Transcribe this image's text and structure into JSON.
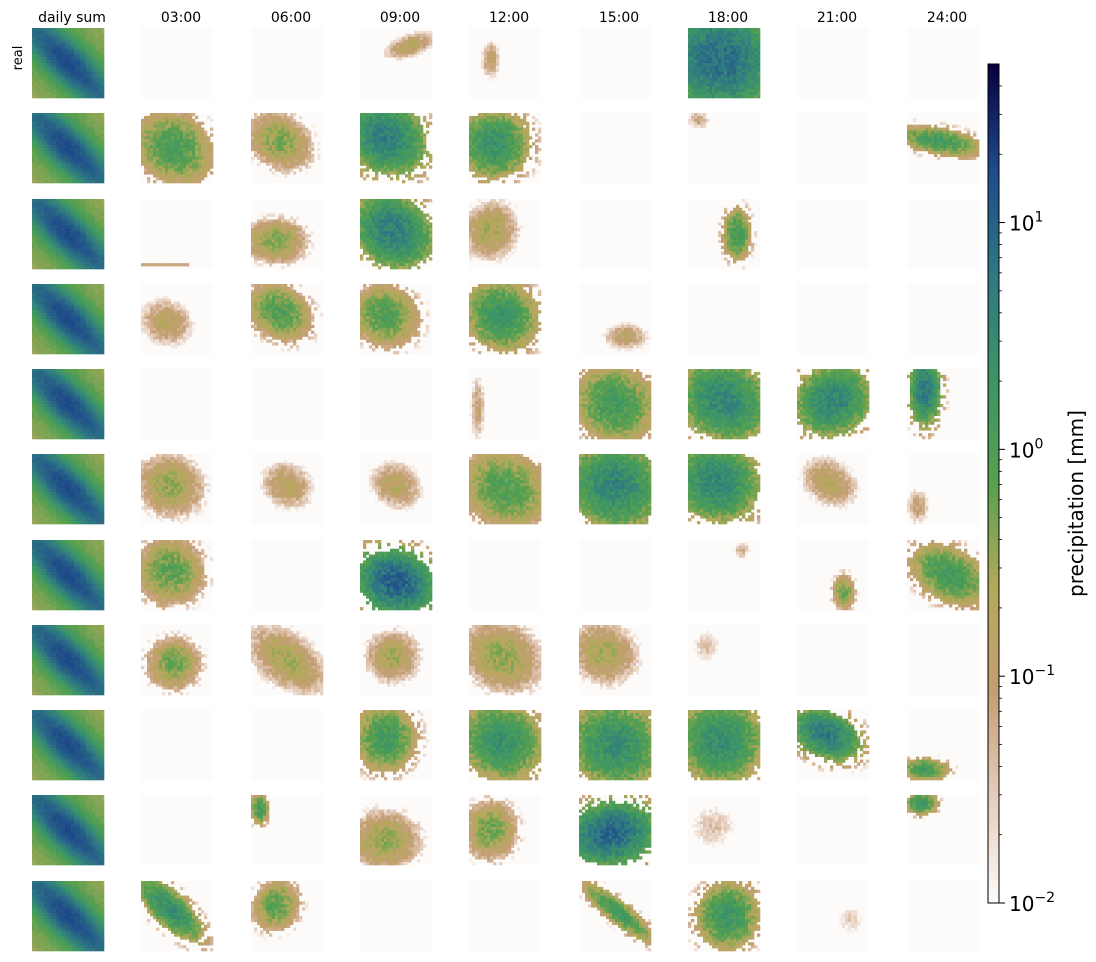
{
  "chart_data": {
    "type": "heatmap",
    "title": "",
    "column_labels": [
      "daily sum",
      "03:00",
      "06:00",
      "09:00",
      "12:00",
      "15:00",
      "18:00",
      "21:00",
      "24:00"
    ],
    "row_labels": [
      "real",
      "",
      "",
      "",
      "",
      "",
      "",
      "",
      "",
      "",
      ""
    ],
    "grid": {
      "rows": 11,
      "cols": 9
    },
    "colorbar": {
      "label": "precipitation [mm]",
      "scale": "log",
      "range": [
        0.01,
        50
      ],
      "ticks": [
        {
          "value": 0.01,
          "base": "10",
          "exp": "−2"
        },
        {
          "value": 0.1,
          "base": "10",
          "exp": "−1"
        },
        {
          "value": 1,
          "base": "10",
          "exp": "0"
        },
        {
          "value": 10,
          "base": "10",
          "exp": "1"
        }
      ],
      "colormap": "gist_earth_r",
      "colors": [
        "#fdfbf9",
        "#e5cdbd",
        "#c49e74",
        "#b3a95a",
        "#58a04f",
        "#3c9566",
        "#2e7883",
        "#1e4a8a",
        "#07003f"
      ]
    },
    "panels": [
      {
        "row": 0,
        "col": 0,
        "type": "sum"
      },
      {
        "row": 0,
        "col": 1,
        "type": "empty"
      },
      {
        "row": 0,
        "col": 2,
        "type": "empty"
      },
      {
        "row": 0,
        "col": 3,
        "type": "blob",
        "cx": 0.7,
        "cy": 0.25,
        "rx": 0.35,
        "ry": 0.15,
        "max": 0.2,
        "angle": -20
      },
      {
        "row": 0,
        "col": 4,
        "type": "blob",
        "cx": 0.3,
        "cy": 0.45,
        "rx": 0.12,
        "ry": 0.25,
        "max": 0.15,
        "angle": 0
      },
      {
        "row": 0,
        "col": 5,
        "type": "empty"
      },
      {
        "row": 0,
        "col": 6,
        "type": "blob",
        "cx": 0.45,
        "cy": 0.45,
        "rx": 0.75,
        "ry": 0.7,
        "max": 8,
        "angle": 20
      },
      {
        "row": 0,
        "col": 7,
        "type": "empty"
      },
      {
        "row": 0,
        "col": 8,
        "type": "empty"
      },
      {
        "row": 1,
        "col": 0,
        "type": "sum"
      },
      {
        "row": 1,
        "col": 1,
        "type": "blob",
        "cx": 0.45,
        "cy": 0.5,
        "rx": 0.55,
        "ry": 0.45,
        "max": 1.2,
        "angle": 35
      },
      {
        "row": 1,
        "col": 2,
        "type": "blob",
        "cx": 0.4,
        "cy": 0.4,
        "rx": 0.45,
        "ry": 0.35,
        "max": 0.5,
        "angle": 35
      },
      {
        "row": 1,
        "col": 3,
        "type": "blob",
        "cx": 0.35,
        "cy": 0.35,
        "rx": 0.55,
        "ry": 0.45,
        "max": 5,
        "angle": 35
      },
      {
        "row": 1,
        "col": 4,
        "type": "blob",
        "cx": 0.35,
        "cy": 0.45,
        "rx": 0.45,
        "ry": 0.45,
        "max": 2.5,
        "angle": 35
      },
      {
        "row": 1,
        "col": 5,
        "type": "empty"
      },
      {
        "row": 1,
        "col": 6,
        "type": "blob",
        "cx": 0.15,
        "cy": 0.1,
        "rx": 0.15,
        "ry": 0.12,
        "max": 0.1,
        "angle": 0
      },
      {
        "row": 1,
        "col": 7,
        "type": "empty"
      },
      {
        "row": 1,
        "col": 8,
        "type": "blob",
        "cx": 0.45,
        "cy": 0.4,
        "rx": 0.55,
        "ry": 0.18,
        "max": 1.5,
        "angle": 10
      },
      {
        "row": 2,
        "col": 0,
        "type": "sum"
      },
      {
        "row": 2,
        "col": 1,
        "type": "strip",
        "y": 0.95,
        "x0": 0.0,
        "x1": 0.7
      },
      {
        "row": 2,
        "col": 2,
        "type": "blob",
        "cx": 0.35,
        "cy": 0.6,
        "rx": 0.4,
        "ry": 0.3,
        "max": 0.5,
        "angle": 0
      },
      {
        "row": 2,
        "col": 3,
        "type": "blob",
        "cx": 0.45,
        "cy": 0.45,
        "rx": 0.55,
        "ry": 0.45,
        "max": 5,
        "angle": 40
      },
      {
        "row": 2,
        "col": 4,
        "type": "blob",
        "cx": 0.3,
        "cy": 0.45,
        "rx": 0.35,
        "ry": 0.4,
        "max": 0.3,
        "angle": 20
      },
      {
        "row": 2,
        "col": 5,
        "type": "empty"
      },
      {
        "row": 2,
        "col": 6,
        "type": "blob",
        "cx": 0.68,
        "cy": 0.5,
        "rx": 0.18,
        "ry": 0.35,
        "max": 1.5,
        "angle": 0
      },
      {
        "row": 2,
        "col": 7,
        "type": "empty"
      },
      {
        "row": 2,
        "col": 8,
        "type": "empty"
      },
      {
        "row": 3,
        "col": 0,
        "type": "sum"
      },
      {
        "row": 3,
        "col": 1,
        "type": "blob",
        "cx": 0.35,
        "cy": 0.55,
        "rx": 0.35,
        "ry": 0.3,
        "max": 0.2,
        "angle": 30
      },
      {
        "row": 3,
        "col": 2,
        "type": "blob",
        "cx": 0.4,
        "cy": 0.4,
        "rx": 0.45,
        "ry": 0.35,
        "max": 1.0,
        "angle": 35
      },
      {
        "row": 3,
        "col": 3,
        "type": "blob",
        "cx": 0.35,
        "cy": 0.45,
        "rx": 0.45,
        "ry": 0.4,
        "max": 1.0,
        "angle": 35
      },
      {
        "row": 3,
        "col": 4,
        "type": "blob",
        "cx": 0.45,
        "cy": 0.45,
        "rx": 0.5,
        "ry": 0.45,
        "max": 2,
        "angle": 40
      },
      {
        "row": 3,
        "col": 5,
        "type": "blob",
        "cx": 0.65,
        "cy": 0.75,
        "rx": 0.3,
        "ry": 0.18,
        "max": 0.15,
        "angle": 0
      },
      {
        "row": 3,
        "col": 6,
        "type": "empty"
      },
      {
        "row": 3,
        "col": 7,
        "type": "empty"
      },
      {
        "row": 3,
        "col": 8,
        "type": "empty"
      },
      {
        "row": 4,
        "col": 0,
        "type": "sum"
      },
      {
        "row": 4,
        "col": 1,
        "type": "empty"
      },
      {
        "row": 4,
        "col": 2,
        "type": "empty"
      },
      {
        "row": 4,
        "col": 3,
        "type": "empty"
      },
      {
        "row": 4,
        "col": 4,
        "type": "blob",
        "cx": 0.12,
        "cy": 0.55,
        "rx": 0.1,
        "ry": 0.45,
        "max": 0.1,
        "angle": 0
      },
      {
        "row": 4,
        "col": 5,
        "type": "blob",
        "cx": 0.5,
        "cy": 0.5,
        "rx": 0.55,
        "ry": 0.5,
        "max": 1.5,
        "angle": 35
      },
      {
        "row": 4,
        "col": 6,
        "type": "blob",
        "cx": 0.5,
        "cy": 0.45,
        "rx": 0.6,
        "ry": 0.5,
        "max": 4,
        "angle": 30
      },
      {
        "row": 4,
        "col": 7,
        "type": "blob",
        "cx": 0.5,
        "cy": 0.45,
        "rx": 0.5,
        "ry": 0.45,
        "max": 4,
        "angle": -30
      },
      {
        "row": 4,
        "col": 8,
        "type": "blob",
        "cx": 0.25,
        "cy": 0.3,
        "rx": 0.2,
        "ry": 0.45,
        "max": 6,
        "angle": 0
      },
      {
        "row": 5,
        "col": 0,
        "type": "sum"
      },
      {
        "row": 5,
        "col": 1,
        "type": "blob",
        "cx": 0.4,
        "cy": 0.45,
        "rx": 0.45,
        "ry": 0.4,
        "max": 0.4,
        "angle": 35
      },
      {
        "row": 5,
        "col": 2,
        "type": "blob",
        "cx": 0.5,
        "cy": 0.45,
        "rx": 0.35,
        "ry": 0.3,
        "max": 0.2,
        "angle": 35
      },
      {
        "row": 5,
        "col": 3,
        "type": "blob",
        "cx": 0.5,
        "cy": 0.45,
        "rx": 0.35,
        "ry": 0.3,
        "max": 0.2,
        "angle": 35
      },
      {
        "row": 5,
        "col": 4,
        "type": "blob",
        "cx": 0.5,
        "cy": 0.5,
        "rx": 0.6,
        "ry": 0.5,
        "max": 1.0,
        "angle": 35
      },
      {
        "row": 5,
        "col": 5,
        "type": "blob",
        "cx": 0.5,
        "cy": 0.45,
        "rx": 0.6,
        "ry": 0.55,
        "max": 4,
        "angle": 30
      },
      {
        "row": 5,
        "col": 6,
        "type": "blob",
        "cx": 0.4,
        "cy": 0.4,
        "rx": 0.55,
        "ry": 0.5,
        "max": 4,
        "angle": 35
      },
      {
        "row": 5,
        "col": 7,
        "type": "blob",
        "cx": 0.45,
        "cy": 0.4,
        "rx": 0.4,
        "ry": 0.3,
        "max": 0.2,
        "angle": 35
      },
      {
        "row": 5,
        "col": 8,
        "type": "blob",
        "cx": 0.15,
        "cy": 0.75,
        "rx": 0.15,
        "ry": 0.25,
        "max": 0.1,
        "angle": 0
      },
      {
        "row": 6,
        "col": 0,
        "type": "sum"
      },
      {
        "row": 6,
        "col": 1,
        "type": "blob",
        "cx": 0.4,
        "cy": 0.45,
        "rx": 0.45,
        "ry": 0.45,
        "max": 0.8,
        "angle": 35
      },
      {
        "row": 6,
        "col": 2,
        "type": "empty"
      },
      {
        "row": 6,
        "col": 3,
        "type": "blob",
        "cx": 0.5,
        "cy": 0.6,
        "rx": 0.5,
        "ry": 0.4,
        "max": 12,
        "angle": 20
      },
      {
        "row": 6,
        "col": 4,
        "type": "empty"
      },
      {
        "row": 6,
        "col": 5,
        "type": "empty"
      },
      {
        "row": 6,
        "col": 6,
        "type": "blob",
        "cx": 0.75,
        "cy": 0.15,
        "rx": 0.12,
        "ry": 0.12,
        "max": 0.06,
        "angle": 0
      },
      {
        "row": 6,
        "col": 7,
        "type": "blob",
        "cx": 0.65,
        "cy": 0.75,
        "rx": 0.15,
        "ry": 0.25,
        "max": 0.6,
        "angle": 0
      },
      {
        "row": 6,
        "col": 8,
        "type": "blob",
        "cx": 0.6,
        "cy": 0.5,
        "rx": 0.55,
        "ry": 0.35,
        "max": 1.5,
        "angle": 30
      },
      {
        "row": 7,
        "col": 0,
        "type": "sum"
      },
      {
        "row": 7,
        "col": 1,
        "type": "blob",
        "cx": 0.45,
        "cy": 0.55,
        "rx": 0.35,
        "ry": 0.35,
        "max": 0.6,
        "angle": 30
      },
      {
        "row": 7,
        "col": 2,
        "type": "blob",
        "cx": 0.5,
        "cy": 0.5,
        "rx": 0.6,
        "ry": 0.35,
        "max": 0.3,
        "angle": 40
      },
      {
        "row": 7,
        "col": 3,
        "type": "blob",
        "cx": 0.45,
        "cy": 0.45,
        "rx": 0.35,
        "ry": 0.35,
        "max": 0.3,
        "angle": 30
      },
      {
        "row": 7,
        "col": 4,
        "type": "blob",
        "cx": 0.45,
        "cy": 0.45,
        "rx": 0.55,
        "ry": 0.45,
        "max": 0.4,
        "angle": 35
      },
      {
        "row": 7,
        "col": 5,
        "type": "blob",
        "cx": 0.35,
        "cy": 0.4,
        "rx": 0.45,
        "ry": 0.4,
        "max": 0.3,
        "angle": 35
      },
      {
        "row": 7,
        "col": 6,
        "type": "blob",
        "cx": 0.25,
        "cy": 0.3,
        "rx": 0.2,
        "ry": 0.25,
        "max": 0.04,
        "angle": 0
      },
      {
        "row": 7,
        "col": 7,
        "type": "empty"
      },
      {
        "row": 7,
        "col": 8,
        "type": "empty"
      },
      {
        "row": 8,
        "col": 0,
        "type": "sum"
      },
      {
        "row": 8,
        "col": 1,
        "type": "empty"
      },
      {
        "row": 8,
        "col": 2,
        "type": "empty"
      },
      {
        "row": 8,
        "col": 3,
        "type": "blob",
        "cx": 0.35,
        "cy": 0.4,
        "rx": 0.4,
        "ry": 0.45,
        "max": 1.5,
        "angle": 0
      },
      {
        "row": 8,
        "col": 4,
        "type": "blob",
        "cx": 0.45,
        "cy": 0.45,
        "rx": 0.55,
        "ry": 0.5,
        "max": 2.5,
        "angle": 35
      },
      {
        "row": 8,
        "col": 5,
        "type": "blob",
        "cx": 0.5,
        "cy": 0.5,
        "rx": 0.6,
        "ry": 0.55,
        "max": 3,
        "angle": 30
      },
      {
        "row": 8,
        "col": 6,
        "type": "blob",
        "cx": 0.45,
        "cy": 0.45,
        "rx": 0.55,
        "ry": 0.55,
        "max": 3,
        "angle": 30
      },
      {
        "row": 8,
        "col": 7,
        "type": "blob",
        "cx": 0.4,
        "cy": 0.35,
        "rx": 0.45,
        "ry": 0.3,
        "max": 6,
        "angle": 25
      },
      {
        "row": 8,
        "col": 8,
        "type": "blob",
        "cx": 0.25,
        "cy": 0.85,
        "rx": 0.3,
        "ry": 0.15,
        "max": 1.5,
        "angle": 0
      },
      {
        "row": 9,
        "col": 0,
        "type": "sum"
      },
      {
        "row": 9,
        "col": 1,
        "type": "empty"
      },
      {
        "row": 9,
        "col": 2,
        "type": "blob",
        "cx": 0.12,
        "cy": 0.2,
        "rx": 0.12,
        "ry": 0.2,
        "max": 1.5,
        "angle": 0
      },
      {
        "row": 9,
        "col": 3,
        "type": "blob",
        "cx": 0.35,
        "cy": 0.65,
        "rx": 0.45,
        "ry": 0.4,
        "max": 0.4,
        "angle": 0
      },
      {
        "row": 9,
        "col": 4,
        "type": "blob",
        "cx": 0.3,
        "cy": 0.5,
        "rx": 0.35,
        "ry": 0.4,
        "max": 0.6,
        "angle": 0
      },
      {
        "row": 9,
        "col": 5,
        "type": "blob",
        "cx": 0.45,
        "cy": 0.55,
        "rx": 0.55,
        "ry": 0.4,
        "max": 10,
        "angle": -10
      },
      {
        "row": 9,
        "col": 6,
        "type": "blob",
        "cx": 0.35,
        "cy": 0.45,
        "rx": 0.35,
        "ry": 0.35,
        "max": 0.04,
        "angle": 0
      },
      {
        "row": 9,
        "col": 7,
        "type": "empty"
      },
      {
        "row": 9,
        "col": 8,
        "type": "blob",
        "cx": 0.2,
        "cy": 0.12,
        "rx": 0.2,
        "ry": 0.15,
        "max": 2,
        "angle": 0
      },
      {
        "row": 10,
        "col": 0,
        "type": "sum"
      },
      {
        "row": 10,
        "col": 1,
        "type": "blob",
        "cx": 0.4,
        "cy": 0.4,
        "rx": 0.55,
        "ry": 0.22,
        "max": 3,
        "angle": 45
      },
      {
        "row": 10,
        "col": 2,
        "type": "blob",
        "cx": 0.35,
        "cy": 0.35,
        "rx": 0.3,
        "ry": 0.35,
        "max": 0.8,
        "angle": 20
      },
      {
        "row": 10,
        "col": 3,
        "type": "empty"
      },
      {
        "row": 10,
        "col": 4,
        "type": "empty"
      },
      {
        "row": 10,
        "col": 5,
        "type": "blob",
        "cx": 0.55,
        "cy": 0.45,
        "rx": 0.6,
        "ry": 0.15,
        "max": 1.5,
        "angle": 40
      },
      {
        "row": 10,
        "col": 6,
        "type": "blob",
        "cx": 0.55,
        "cy": 0.5,
        "rx": 0.4,
        "ry": 0.45,
        "max": 2,
        "angle": 10
      },
      {
        "row": 10,
        "col": 7,
        "type": "blob",
        "cx": 0.75,
        "cy": 0.55,
        "rx": 0.2,
        "ry": 0.25,
        "max": 0.03,
        "angle": 0
      },
      {
        "row": 10,
        "col": 8,
        "type": "empty"
      }
    ]
  }
}
